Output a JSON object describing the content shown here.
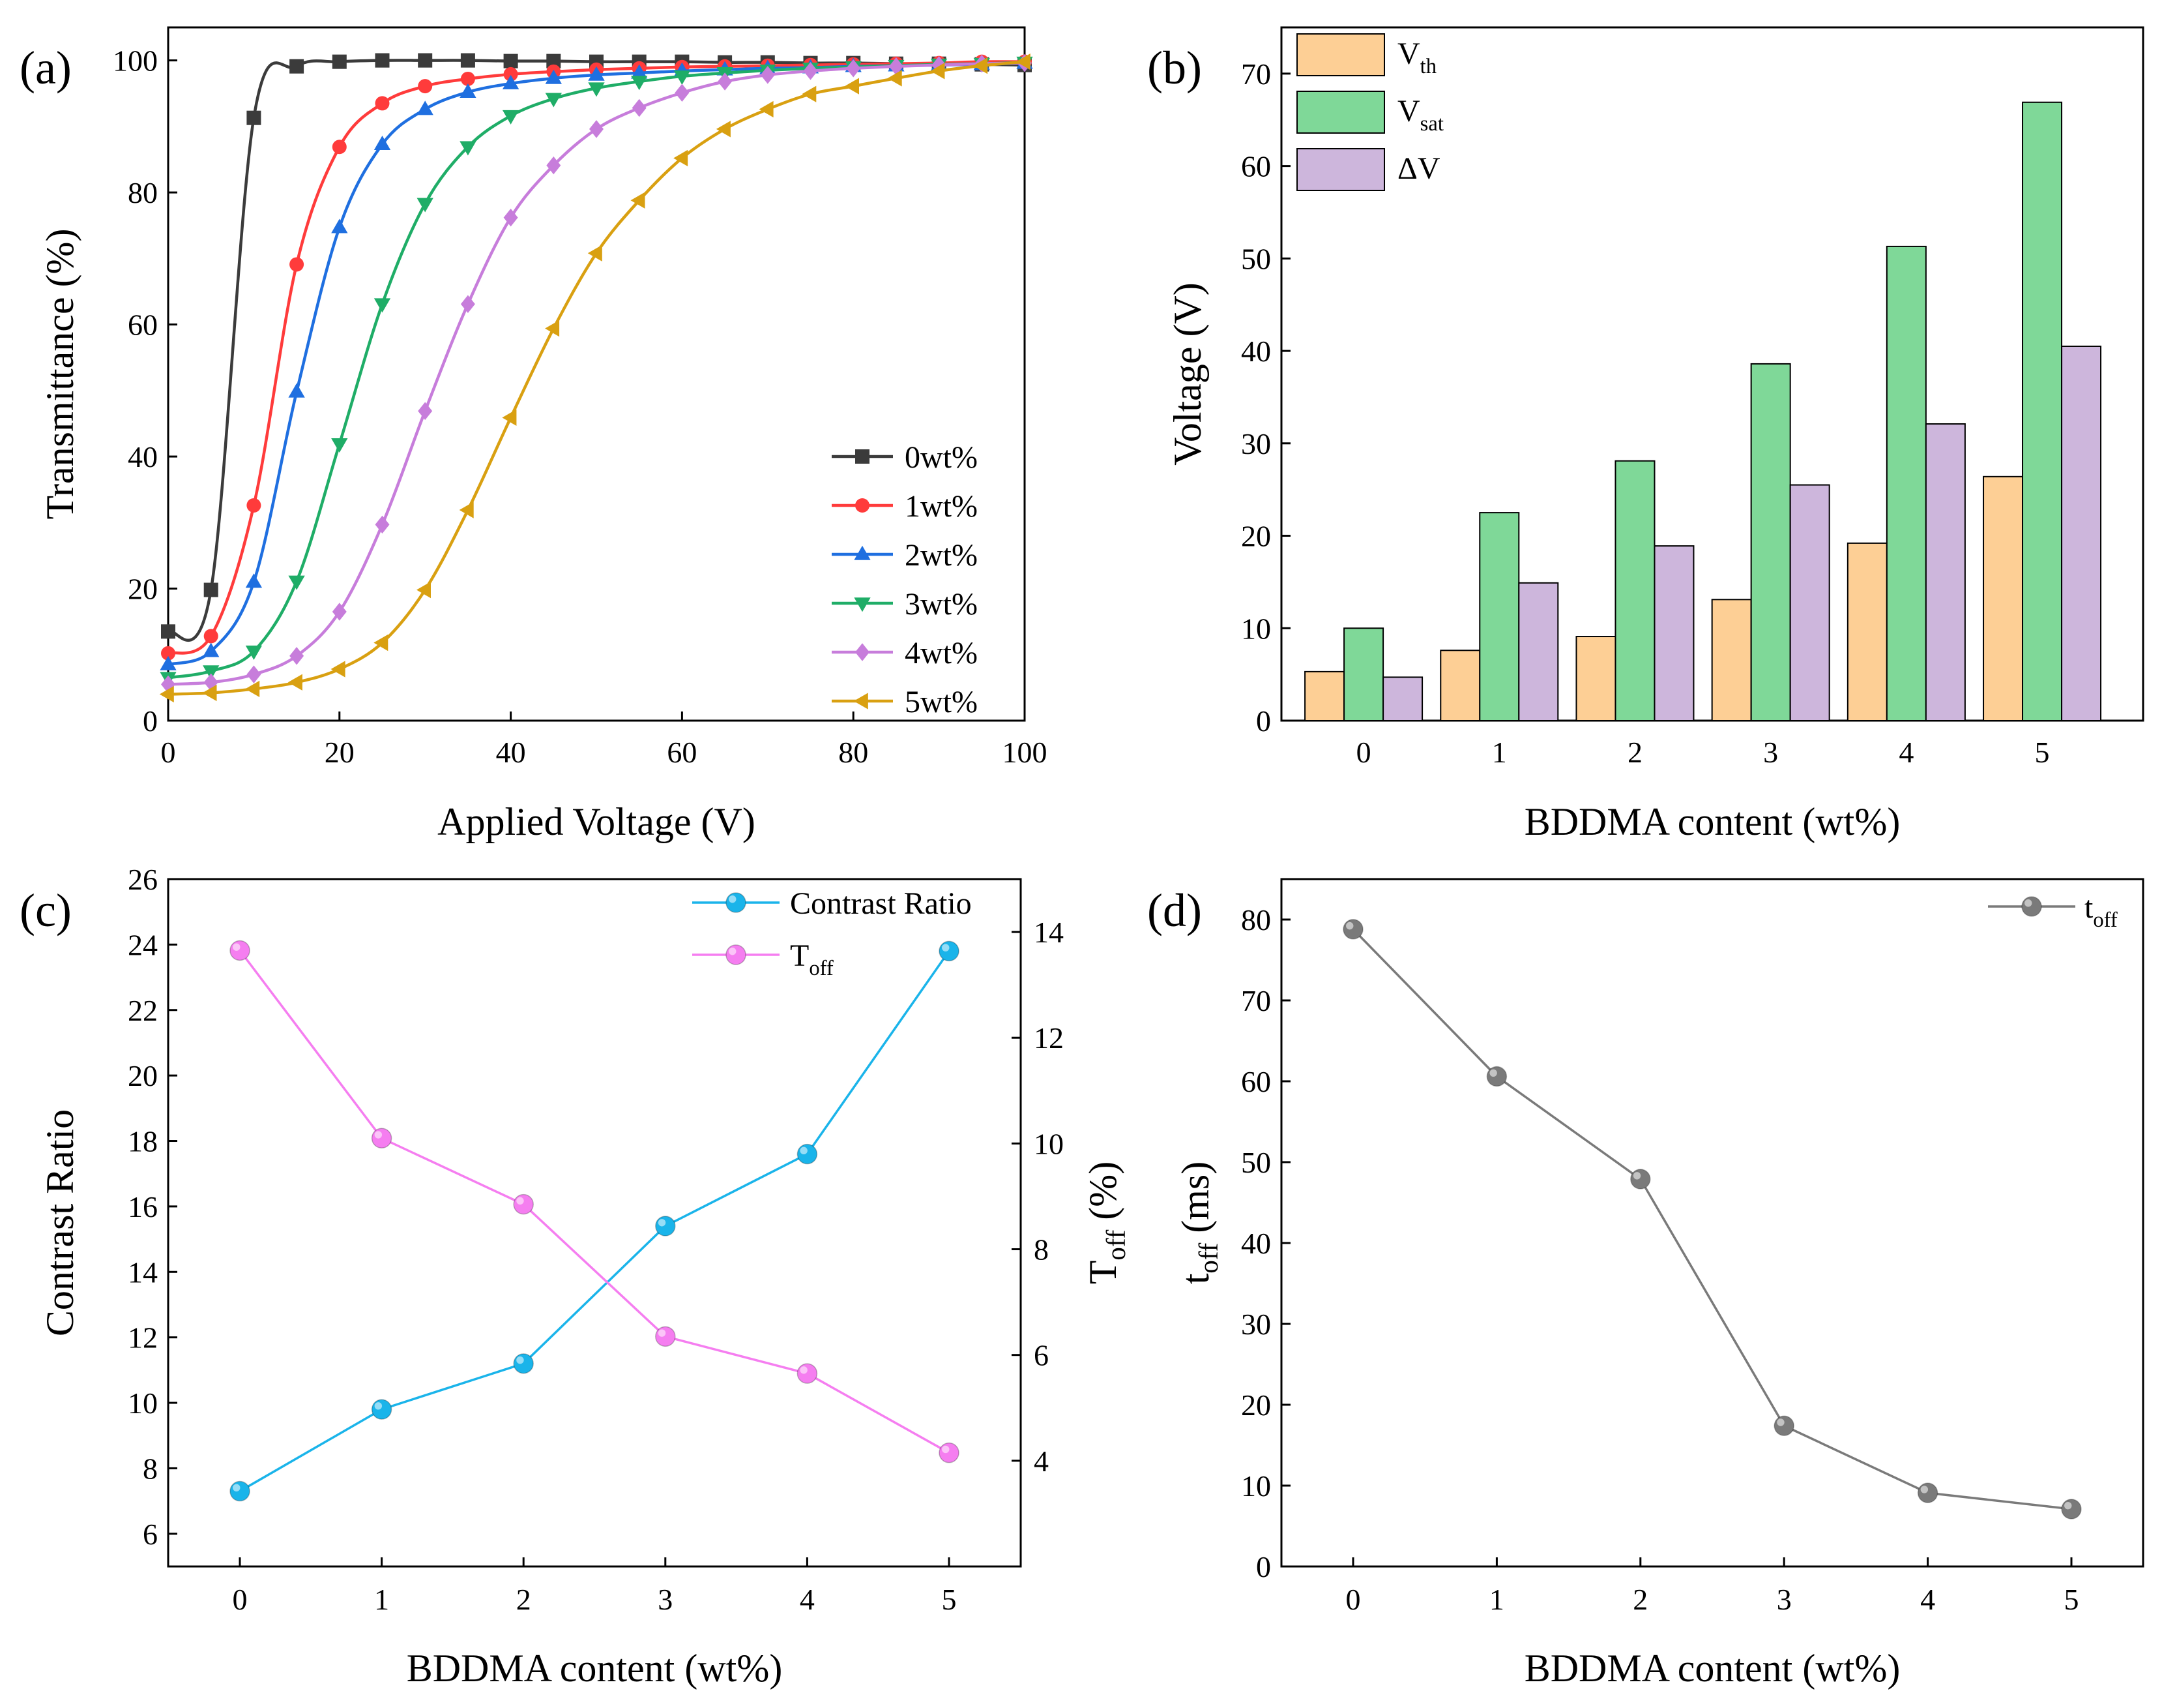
{
  "figure": {
    "panels": [
      "(a)",
      "(b)",
      "(c)",
      "(d)"
    ]
  },
  "chart_data": [
    {
      "id": "a",
      "type": "line",
      "panel_label": "(a)",
      "xlabel": "Applied Voltage (V)",
      "ylabel": "Transmittance (%)",
      "xlim": [
        0,
        100
      ],
      "ylim": [
        0,
        105
      ],
      "xticks": [
        0,
        20,
        40,
        60,
        80,
        100
      ],
      "yticks": [
        0,
        20,
        40,
        60,
        80,
        100
      ],
      "legend_position": "lower-right",
      "series": [
        {
          "name": "0wt%",
          "color": "#3b3b3b",
          "marker": "square",
          "x": [
            0,
            5,
            10,
            15,
            20,
            25,
            30,
            35,
            40,
            45,
            50,
            55,
            60,
            65,
            70,
            75,
            80,
            85,
            90,
            95,
            100
          ],
          "y": [
            13.5,
            19.8,
            91.3,
            99.1,
            99.8,
            100,
            100,
            100,
            99.9,
            99.9,
            99.8,
            99.8,
            99.8,
            99.7,
            99.7,
            99.6,
            99.6,
            99.5,
            99.5,
            99.4,
            99.3
          ]
        },
        {
          "name": "1wt%",
          "color": "#ff3b3b",
          "marker": "circle",
          "x": [
            0,
            5,
            10,
            15,
            20,
            25,
            30,
            35,
            40,
            45,
            50,
            55,
            60,
            65,
            70,
            75,
            80,
            85,
            90,
            95,
            100
          ],
          "y": [
            10.2,
            12.8,
            32.6,
            69.1,
            86.9,
            93.5,
            96.1,
            97.2,
            97.9,
            98.3,
            98.6,
            98.8,
            99.0,
            99.1,
            99.2,
            99.3,
            99.4,
            99.5,
            99.6,
            99.8,
            99.8
          ]
        },
        {
          "name": "2wt%",
          "color": "#1f6fe0",
          "marker": "triangle-up",
          "x": [
            0,
            5,
            10,
            15,
            20,
            25,
            30,
            35,
            40,
            45,
            50,
            55,
            60,
            65,
            70,
            75,
            80,
            85,
            90,
            95,
            100
          ],
          "y": [
            8.5,
            10.5,
            21.0,
            49.8,
            74.7,
            87.3,
            92.6,
            95.2,
            96.5,
            97.3,
            97.8,
            98.1,
            98.4,
            98.6,
            98.8,
            98.9,
            99.1,
            99.2,
            99.3,
            99.4,
            99.6
          ]
        },
        {
          "name": "3wt%",
          "color": "#1fad67",
          "marker": "triangle-down",
          "x": [
            0,
            5,
            10,
            15,
            20,
            25,
            30,
            35,
            40,
            45,
            50,
            55,
            60,
            65,
            70,
            75,
            80,
            85,
            90,
            95,
            100
          ],
          "y": [
            6.5,
            7.5,
            10.5,
            21.1,
            41.9,
            63.1,
            78.3,
            86.9,
            91.6,
            94.2,
            95.8,
            96.8,
            97.6,
            98.1,
            98.5,
            98.8,
            99.0,
            99.2,
            99.4,
            99.5,
            99.7
          ]
        },
        {
          "name": "4wt%",
          "color": "#c77ddb",
          "marker": "diamond",
          "x": [
            0,
            5,
            10,
            15,
            20,
            25,
            30,
            35,
            40,
            45,
            50,
            55,
            60,
            65,
            70,
            75,
            80,
            85,
            90,
            95,
            100
          ],
          "y": [
            5.5,
            5.8,
            7.0,
            9.8,
            16.5,
            29.7,
            46.9,
            63.1,
            76.2,
            84.1,
            89.6,
            92.8,
            95.1,
            96.8,
            97.8,
            98.4,
            98.8,
            99.1,
            99.3,
            99.5,
            99.6
          ]
        },
        {
          "name": "5wt%",
          "color": "#d9a011",
          "marker": "triangle-left",
          "x": [
            0,
            5,
            10,
            15,
            20,
            25,
            30,
            35,
            40,
            45,
            50,
            55,
            60,
            65,
            70,
            75,
            80,
            85,
            90,
            95,
            100
          ],
          "y": [
            4.0,
            4.2,
            4.8,
            5.8,
            7.8,
            11.8,
            19.8,
            31.9,
            45.9,
            59.4,
            70.8,
            78.8,
            85.2,
            89.6,
            92.6,
            94.9,
            96.1,
            97.3,
            98.4,
            99.2,
            99.8
          ]
        }
      ]
    },
    {
      "id": "b",
      "type": "bar",
      "panel_label": "(b)",
      "xlabel": "BDDMA content (wt%)",
      "ylabel": "Voltage (V)",
      "categories": [
        "0",
        "1",
        "2",
        "3",
        "4",
        "5"
      ],
      "ylim": [
        0,
        75
      ],
      "yticks": [
        0,
        10,
        20,
        30,
        40,
        50,
        60,
        70
      ],
      "legend_position": "top-left",
      "series": [
        {
          "name": "V",
          "sub": "th",
          "color": "#fdcf95",
          "values": [
            5.3,
            7.6,
            9.1,
            13.1,
            19.2,
            26.4
          ]
        },
        {
          "name": "V",
          "sub": "sat",
          "color": "#7fd898",
          "values": [
            10.0,
            22.5,
            28.1,
            38.6,
            51.3,
            66.9
          ]
        },
        {
          "name": "ΔV",
          "sub": "",
          "color": "#cdb6dc",
          "values": [
            4.7,
            14.9,
            18.9,
            25.5,
            32.1,
            40.5
          ]
        }
      ]
    },
    {
      "id": "c",
      "type": "line",
      "panel_label": "(c)",
      "xlabel": "BDDMA content (wt%)",
      "ylabel_left": "Contrast Ratio",
      "ylabel_right": {
        "main": "T",
        "sub": "off",
        "tail": " (%)"
      },
      "x": [
        0,
        1,
        2,
        3,
        4,
        5
      ],
      "ylim_left": [
        5,
        26
      ],
      "ylim_right": [
        2,
        15
      ],
      "yticks_left": [
        6,
        8,
        10,
        12,
        14,
        16,
        18,
        20,
        22,
        24,
        26
      ],
      "yticks_right": [
        4,
        6,
        8,
        10,
        12,
        14
      ],
      "legend_position": "top-right",
      "series": [
        {
          "name": "Contrast Ratio",
          "sub": "",
          "axis": "left",
          "color": "#1ab4ea",
          "values": [
            7.3,
            9.8,
            11.2,
            15.4,
            17.6,
            23.8
          ]
        },
        {
          "name": "T",
          "sub": "off",
          "axis": "right",
          "color": "#f57ef0",
          "values": [
            13.65,
            10.1,
            8.85,
            6.35,
            5.65,
            4.15
          ]
        }
      ]
    },
    {
      "id": "d",
      "type": "line",
      "panel_label": "(d)",
      "xlabel": "BDDMA content (wt%)",
      "ylabel": {
        "main": "t",
        "sub": "off",
        "tail": " (ms)"
      },
      "x": [
        0,
        1,
        2,
        3,
        4,
        5
      ],
      "ylim": [
        0,
        85
      ],
      "yticks": [
        0,
        10,
        20,
        30,
        40,
        50,
        60,
        70,
        80
      ],
      "legend_position": "top-right",
      "series": [
        {
          "name": "t",
          "sub": "off",
          "color": "#7a7a7a",
          "values": [
            78.8,
            60.6,
            47.9,
            17.4,
            9.1,
            7.1
          ]
        }
      ]
    }
  ]
}
